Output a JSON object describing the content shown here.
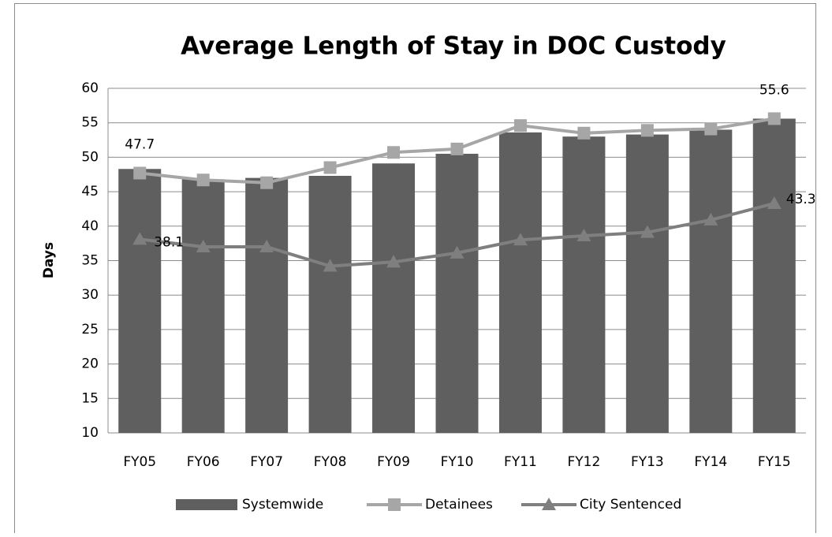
{
  "chart_data": {
    "type": "bar-line",
    "title": "Average Length of Stay in DOC Custody",
    "y_label": "Days",
    "categories": [
      "FY05",
      "FY06",
      "FY07",
      "FY08",
      "FY09",
      "FY10",
      "FY11",
      "FY12",
      "FY13",
      "FY14",
      "FY15"
    ],
    "series": [
      {
        "name": "Systemwide",
        "type": "bar",
        "color": "#5f5f5f",
        "values": [
          48.3,
          46.8,
          47.0,
          47.3,
          49.1,
          50.5,
          53.6,
          53.0,
          53.3,
          54.0,
          55.6
        ]
      },
      {
        "name": "Detainees",
        "type": "line",
        "marker": "square",
        "color": "#a6a6a6",
        "values": [
          47.7,
          46.7,
          46.3,
          48.5,
          50.7,
          51.2,
          54.6,
          53.5,
          53.9,
          54.1,
          55.6
        ]
      },
      {
        "name": "City Sentenced",
        "type": "line",
        "marker": "triangle",
        "color": "#7f7f7f",
        "values": [
          38.1,
          37.0,
          37.0,
          34.2,
          34.8,
          36.1,
          38.0,
          38.6,
          39.1,
          40.9,
          43.3
        ]
      }
    ],
    "ylim": [
      10,
      60
    ],
    "yticks": [
      10,
      15,
      20,
      25,
      30,
      35,
      40,
      45,
      50,
      55,
      60
    ],
    "grid": true,
    "legend": "bottom"
  }
}
